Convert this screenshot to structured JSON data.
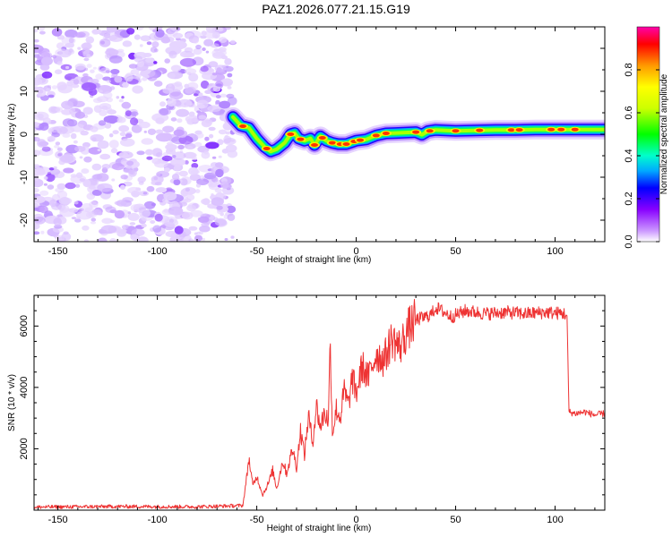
{
  "title": "PAZ1.2026.077.21.15.G19",
  "chart_data": [
    {
      "type": "heatmap",
      "xlabel": "Height of straight line (km)",
      "ylabel": "Frequency (Hz)",
      "xlim": [
        -162,
        125
      ],
      "ylim": [
        -25,
        25
      ],
      "xticks": [
        -150,
        -100,
        -50,
        0,
        50,
        100
      ],
      "yticks": [
        -20,
        -10,
        0,
        10,
        20
      ],
      "noise_region_x": [
        -162,
        -62
      ],
      "ridge": {
        "x": [
          -62,
          -58,
          -54,
          -50,
          -46,
          -43,
          -40,
          -36,
          -33,
          -31,
          -29,
          -26,
          -23,
          -21,
          -18,
          -15,
          -12,
          -9,
          -5,
          0,
          5,
          10,
          15,
          20,
          30,
          33,
          36,
          40,
          50,
          60,
          70,
          80,
          90,
          100,
          110,
          125
        ],
        "freq": [
          4,
          2,
          1.5,
          -1,
          -3,
          -4,
          -3.5,
          -2,
          0,
          0.3,
          -1,
          -1.5,
          -1,
          -2.5,
          -0.5,
          -1.5,
          -2,
          -2.3,
          -2.3,
          -1.5,
          -1.2,
          -0.3,
          0.2,
          0.3,
          0.5,
          -0.1,
          0.7,
          1,
          0.8,
          0.9,
          1,
          1,
          1.1,
          1.1,
          1.1,
          1.1
        ]
      },
      "colorbar": {
        "label": "Normalized spectral amplitude",
        "ticks": [
          0.0,
          0.2,
          0.4,
          0.6,
          0.8
        ],
        "tick_labels": [
          "0.0",
          "0.2",
          "0.4",
          "0.6",
          "0.8"
        ],
        "range": [
          0,
          1
        ],
        "colors": [
          "#ffffff",
          "#cc99ff",
          "#8800ff",
          "#0000ff",
          "#00aaff",
          "#00ffcc",
          "#00ff00",
          "#ccff00",
          "#ffff00",
          "#ff9900",
          "#ff0000",
          "#ff00aa"
        ]
      }
    },
    {
      "type": "line",
      "xlabel": "Height of straight line (km)",
      "ylabel": "SNR (10 * v/v)",
      "xlim": [
        -162,
        125
      ],
      "ylim": [
        0,
        7000
      ],
      "xticks": [
        -150,
        -100,
        -50,
        0,
        50,
        100
      ],
      "yticks": [
        2000,
        4000,
        6000
      ],
      "color": "#ee3333",
      "series": [
        {
          "name": "SNR",
          "x": [
            -162,
            -120,
            -80,
            -57,
            -55,
            -54,
            -52,
            -50,
            -47,
            -44,
            -42,
            -40,
            -37,
            -35,
            -32,
            -30,
            -28,
            -26,
            -24,
            -22,
            -20,
            -18,
            -16,
            -14,
            -13,
            -12,
            -10,
            -8,
            -6,
            -4,
            -2,
            0,
            3,
            6,
            10,
            14,
            18,
            22,
            26,
            30,
            35,
            38,
            40,
            43,
            48,
            55,
            65,
            75,
            85,
            95,
            105,
            106,
            107,
            110,
            115,
            120,
            125
          ],
          "y": [
            100,
            120,
            110,
            150,
            1100,
            1700,
            800,
            1100,
            500,
            900,
            1300,
            700,
            1600,
            1200,
            2000,
            1400,
            2600,
            1800,
            3100,
            2200,
            3400,
            2700,
            3200,
            2900,
            5600,
            2500,
            3300,
            3000,
            3900,
            3400,
            4300,
            3800,
            4700,
            4300,
            5100,
            4900,
            5600,
            5300,
            5900,
            6200,
            6300,
            6400,
            6600,
            6500,
            6300,
            6500,
            6400,
            6450,
            6400,
            6450,
            6400,
            6300,
            3200,
            3150,
            3200,
            3100,
            3150
          ]
        }
      ]
    }
  ]
}
